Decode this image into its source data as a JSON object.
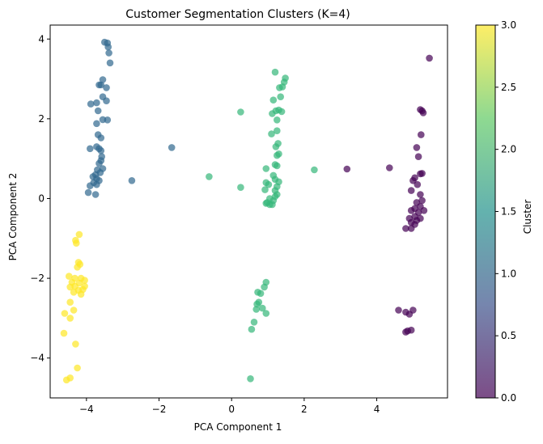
{
  "chart_data": {
    "type": "scatter",
    "title": "Customer Segmentation Clusters (K=4)",
    "xlabel": "PCA Component 1",
    "ylabel": "PCA Component 2",
    "xlim": [
      -5.0,
      5.95
    ],
    "ylim": [
      -5.0,
      4.35
    ],
    "xticks": [
      -4,
      -2,
      0,
      2,
      4
    ],
    "yticks": [
      -4,
      -2,
      0,
      2,
      4
    ],
    "grid": false,
    "colormap": "viridis",
    "point_alpha": 0.7,
    "colorbar": {
      "label": "Cluster",
      "range": [
        0.0,
        3.0
      ],
      "ticks": [
        "0.0",
        "0.5",
        "1.0",
        "1.5",
        "2.0",
        "2.5",
        "3.0"
      ],
      "colors": [
        "#440154",
        "#3b528b",
        "#21918c",
        "#5ec962",
        "#fde725"
      ]
    },
    "series": [
      {
        "cluster": 0,
        "color": "#440154",
        "points": [
          [
            5.45,
            3.52
          ],
          [
            5.2,
            2.23
          ],
          [
            5.28,
            2.15
          ],
          [
            5.25,
            2.2
          ],
          [
            5.22,
            1.6
          ],
          [
            5.1,
            1.28
          ],
          [
            5.15,
            1.05
          ],
          [
            5.05,
            0.52
          ],
          [
            5.2,
            0.62
          ],
          [
            5.25,
            0.63
          ],
          [
            5.0,
            0.45
          ],
          [
            5.12,
            0.35
          ],
          [
            4.95,
            0.2
          ],
          [
            5.2,
            0.1
          ],
          [
            5.25,
            -0.05
          ],
          [
            5.1,
            -0.1
          ],
          [
            5.2,
            -0.2
          ],
          [
            5.3,
            -0.3
          ],
          [
            5.05,
            -0.25
          ],
          [
            4.95,
            -0.3
          ],
          [
            5.15,
            -0.35
          ],
          [
            5.05,
            -0.45
          ],
          [
            4.9,
            -0.5
          ],
          [
            5.1,
            -0.55
          ],
          [
            5.2,
            -0.5
          ],
          [
            4.95,
            -0.6
          ],
          [
            5.05,
            -0.65
          ],
          [
            4.8,
            -0.75
          ],
          [
            4.95,
            -0.75
          ],
          [
            3.18,
            0.74
          ],
          [
            4.35,
            0.77
          ],
          [
            4.6,
            -2.8
          ],
          [
            4.8,
            -2.85
          ],
          [
            5.0,
            -2.8
          ],
          [
            4.9,
            -2.9
          ],
          [
            4.8,
            -3.35
          ],
          [
            4.85,
            -3.32
          ],
          [
            4.95,
            -3.3
          ]
        ]
      },
      {
        "cluster": 1,
        "color": "#31688e",
        "points": [
          [
            -3.5,
            3.92
          ],
          [
            -3.42,
            3.9
          ],
          [
            -3.4,
            3.8
          ],
          [
            -3.38,
            3.65
          ],
          [
            -3.35,
            3.4
          ],
          [
            -3.65,
            2.85
          ],
          [
            -3.6,
            2.85
          ],
          [
            -3.55,
            2.98
          ],
          [
            -3.45,
            2.78
          ],
          [
            -3.55,
            2.55
          ],
          [
            -3.45,
            2.45
          ],
          [
            -3.72,
            2.4
          ],
          [
            -3.88,
            2.37
          ],
          [
            -3.68,
            2.2
          ],
          [
            -3.55,
            1.98
          ],
          [
            -3.42,
            1.97
          ],
          [
            -3.72,
            1.88
          ],
          [
            -3.68,
            1.6
          ],
          [
            -3.6,
            1.52
          ],
          [
            -3.72,
            1.3
          ],
          [
            -3.65,
            1.25
          ],
          [
            -3.9,
            1.25
          ],
          [
            -3.6,
            1.2
          ],
          [
            -3.58,
            1.05
          ],
          [
            -3.6,
            0.95
          ],
          [
            -3.65,
            0.88
          ],
          [
            -3.55,
            0.75
          ],
          [
            -3.7,
            0.72
          ],
          [
            -3.62,
            0.65
          ],
          [
            -3.75,
            0.6
          ],
          [
            -3.82,
            0.55
          ],
          [
            -3.72,
            0.5
          ],
          [
            -3.65,
            0.45
          ],
          [
            -3.8,
            0.4
          ],
          [
            -3.72,
            0.35
          ],
          [
            -3.9,
            0.32
          ],
          [
            -3.95,
            0.15
          ],
          [
            -3.75,
            0.1
          ],
          [
            -2.75,
            0.45
          ],
          [
            -1.65,
            1.28
          ]
        ]
      },
      {
        "cluster": 2,
        "color": "#35b779",
        "points": [
          [
            1.2,
            3.17
          ],
          [
            1.48,
            3.02
          ],
          [
            1.45,
            2.92
          ],
          [
            1.4,
            2.8
          ],
          [
            1.32,
            2.78
          ],
          [
            1.35,
            2.55
          ],
          [
            1.15,
            2.47
          ],
          [
            1.3,
            2.22
          ],
          [
            1.22,
            2.2
          ],
          [
            1.38,
            2.18
          ],
          [
            1.12,
            2.13
          ],
          [
            1.25,
            1.97
          ],
          [
            1.25,
            1.7
          ],
          [
            1.1,
            1.62
          ],
          [
            1.28,
            1.38
          ],
          [
            1.22,
            1.3
          ],
          [
            1.3,
            1.12
          ],
          [
            1.25,
            1.08
          ],
          [
            1.2,
            0.85
          ],
          [
            1.25,
            0.82
          ],
          [
            0.95,
            0.75
          ],
          [
            1.15,
            0.58
          ],
          [
            1.2,
            0.48
          ],
          [
            1.3,
            0.42
          ],
          [
            0.95,
            0.4
          ],
          [
            1.02,
            0.35
          ],
          [
            1.25,
            0.3
          ],
          [
            1.2,
            0.2
          ],
          [
            0.92,
            0.22
          ],
          [
            1.25,
            0.1
          ],
          [
            1.2,
            0.05
          ],
          [
            1.05,
            0.0
          ],
          [
            1.15,
            -0.05
          ],
          [
            0.98,
            -0.1
          ],
          [
            1.05,
            -0.15
          ],
          [
            1.12,
            -0.15
          ],
          [
            0.95,
            -0.12
          ],
          [
            0.25,
            2.17
          ],
          [
            0.25,
            0.28
          ],
          [
            -0.62,
            0.55
          ],
          [
            2.28,
            0.72
          ],
          [
            0.95,
            -2.1
          ],
          [
            0.9,
            -2.22
          ],
          [
            0.72,
            -2.35
          ],
          [
            0.8,
            -2.38
          ],
          [
            0.75,
            -2.6
          ],
          [
            0.7,
            -2.65
          ],
          [
            0.68,
            -2.78
          ],
          [
            0.85,
            -2.75
          ],
          [
            0.95,
            -2.88
          ],
          [
            0.62,
            -3.1
          ],
          [
            0.55,
            -3.28
          ],
          [
            0.52,
            -4.52
          ]
        ]
      },
      {
        "cluster": 3,
        "color": "#fde725",
        "points": [
          [
            -4.2,
            -0.9
          ],
          [
            -4.3,
            -1.05
          ],
          [
            -4.28,
            -1.12
          ],
          [
            -4.22,
            -1.6
          ],
          [
            -4.18,
            -1.65
          ],
          [
            -4.25,
            -1.72
          ],
          [
            -4.48,
            -1.95
          ],
          [
            -4.32,
            -2.0
          ],
          [
            -4.15,
            -2.0
          ],
          [
            -4.05,
            -2.05
          ],
          [
            -4.4,
            -2.1
          ],
          [
            -4.2,
            -2.12
          ],
          [
            -4.32,
            -2.2
          ],
          [
            -4.45,
            -2.22
          ],
          [
            -4.05,
            -2.2
          ],
          [
            -4.1,
            -2.28
          ],
          [
            -4.22,
            -2.3
          ],
          [
            -4.35,
            -2.35
          ],
          [
            -4.15,
            -2.4
          ],
          [
            -4.45,
            -2.6
          ],
          [
            -4.35,
            -2.8
          ],
          [
            -4.6,
            -2.88
          ],
          [
            -4.45,
            -3.0
          ],
          [
            -4.62,
            -3.38
          ],
          [
            -4.3,
            -3.65
          ],
          [
            -4.25,
            -4.25
          ],
          [
            -4.45,
            -4.5
          ],
          [
            -4.55,
            -4.55
          ]
        ]
      }
    ]
  }
}
